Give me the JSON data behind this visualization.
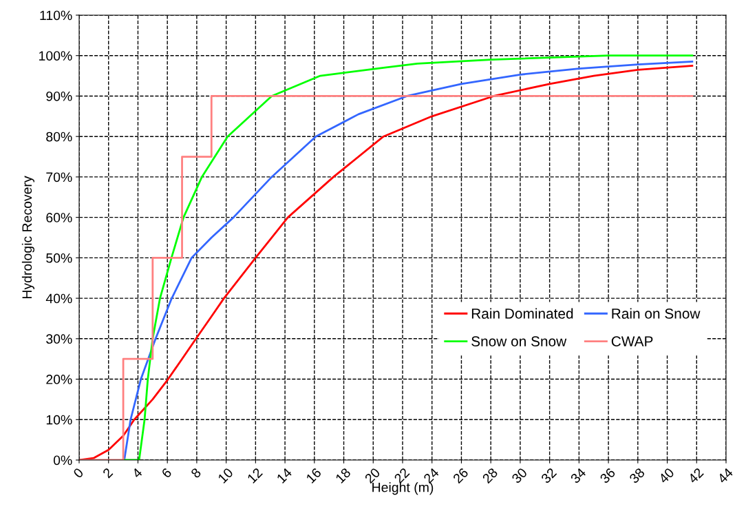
{
  "chart_data": {
    "type": "line",
    "xlabel": "Height (m)",
    "ylabel": "Hydrologic Recovery",
    "xlim": [
      0,
      44
    ],
    "xticks": [
      0,
      2,
      4,
      6,
      8,
      10,
      12,
      14,
      16,
      18,
      20,
      22,
      24,
      26,
      28,
      30,
      32,
      34,
      36,
      38,
      40,
      42,
      44
    ],
    "ylim": [
      0,
      110
    ],
    "yticks": [
      {
        "value": 0,
        "label": "0%"
      },
      {
        "value": 10,
        "label": "10%"
      },
      {
        "value": 20,
        "label": "20%"
      },
      {
        "value": 30,
        "label": "30%"
      },
      {
        "value": 40,
        "label": "40%"
      },
      {
        "value": 50,
        "label": "50%"
      },
      {
        "value": 60,
        "label": "60%"
      },
      {
        "value": 70,
        "label": "70%"
      },
      {
        "value": 80,
        "label": "80%"
      },
      {
        "value": 90,
        "label": "90%"
      },
      {
        "value": 100,
        "label": "100%"
      },
      {
        "value": 110,
        "label": "110%"
      }
    ],
    "grid": true,
    "legend": "lower right",
    "marker": "none",
    "line_style": "solid",
    "series": [
      {
        "name": "Rain Dominated",
        "color": "#ff0000",
        "x": [
          0,
          1,
          2,
          3,
          3.75,
          5,
          6.05,
          7,
          7.95,
          9,
          9.85,
          12,
          14.2,
          17.3,
          20.7,
          24,
          28.2,
          32,
          35,
          38,
          41.7
        ],
        "values": [
          0,
          0.5,
          2.5,
          6,
          10,
          15,
          20,
          25,
          30,
          35.5,
          40,
          50,
          60,
          70,
          80,
          85,
          90,
          93,
          95,
          96.5,
          97.5
        ]
      },
      {
        "name": "Rain on Snow",
        "color": "#3366ff",
        "x": [
          3.07,
          3.5,
          4.2,
          5.2,
          6.3,
          7.65,
          9,
          10.5,
          13.1,
          16.1,
          19,
          22.3,
          26,
          30,
          34,
          38,
          41.7
        ],
        "values": [
          0,
          10,
          20,
          30,
          40,
          50,
          55,
          60,
          70,
          80,
          85.5,
          90,
          93,
          95.3,
          96.8,
          97.8,
          98.5
        ]
      },
      {
        "name": "Snow on Snow",
        "color": "#00ff00",
        "x": [
          3,
          4.08,
          4.45,
          4.67,
          5.0,
          5.5,
          6.28,
          7.1,
          8.35,
          10.1,
          13.1,
          16.4,
          20.7,
          23,
          28,
          36,
          41.7
        ],
        "values": [
          0,
          0,
          10,
          20,
          30,
          40,
          50,
          60,
          70,
          80,
          90,
          95,
          97,
          98,
          99,
          100,
          100
        ]
      },
      {
        "name": "CWAP",
        "color": "#ff8080",
        "type": "step",
        "x": [
          0,
          3,
          5,
          7,
          9,
          41.7
        ],
        "values": [
          0,
          25,
          50,
          75,
          90,
          90
        ]
      }
    ]
  }
}
